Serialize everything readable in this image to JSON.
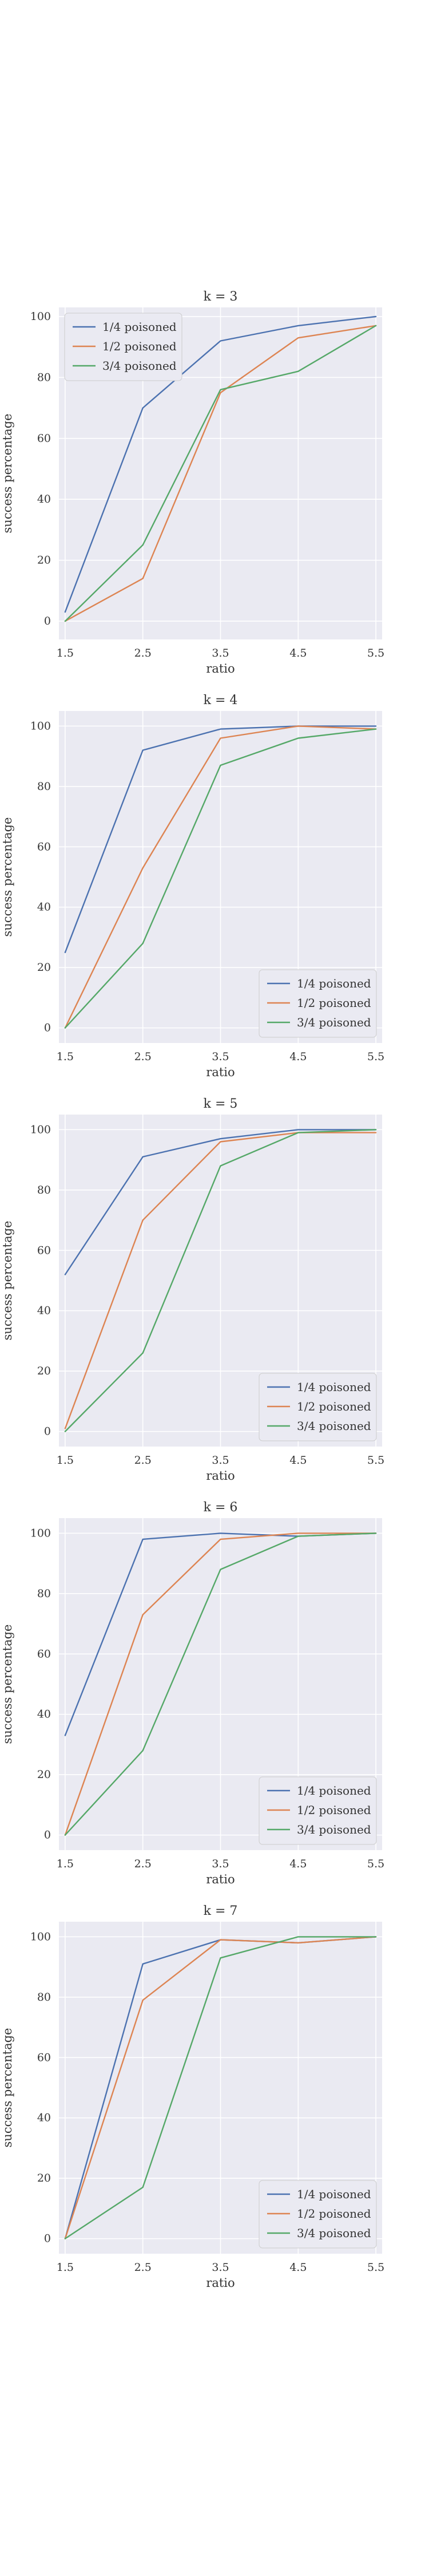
{
  "colors": {
    "series_1": "#4c72b0",
    "series_2": "#dd8452",
    "series_3": "#55a868",
    "plot_background": "#eaeaf2",
    "grid": "#ffffff",
    "text": "#333333"
  },
  "chart_data": [
    {
      "type": "line",
      "title": "k = 3",
      "xlabel": "ratio",
      "ylabel": "success percentage",
      "x": [
        1.5,
        2.5,
        3.5,
        4.5,
        5.5
      ],
      "x_ticks": [
        "1.5",
        "2.5",
        "3.5",
        "4.5",
        "5.5"
      ],
      "y_ticks": [
        "0",
        "20",
        "40",
        "60",
        "80",
        "100"
      ],
      "xlim": [
        1.42,
        5.58
      ],
      "ylim": [
        -6,
        103
      ],
      "grid": true,
      "legend_position": "upper-left",
      "series": [
        {
          "name": "1/4 poisoned",
          "values": [
            3,
            70,
            92,
            97,
            100
          ]
        },
        {
          "name": "1/2 poisoned",
          "values": [
            0,
            14,
            75,
            93,
            97
          ]
        },
        {
          "name": "3/4 poisoned",
          "values": [
            0,
            25,
            76,
            82,
            97
          ]
        }
      ]
    },
    {
      "type": "line",
      "title": "k = 4",
      "xlabel": "ratio",
      "ylabel": "success percentage",
      "x": [
        1.5,
        2.5,
        3.5,
        4.5,
        5.5
      ],
      "x_ticks": [
        "1.5",
        "2.5",
        "3.5",
        "4.5",
        "5.5"
      ],
      "y_ticks": [
        "0",
        "20",
        "40",
        "60",
        "80",
        "100"
      ],
      "xlim": [
        1.42,
        5.58
      ],
      "ylim": [
        -5,
        105
      ],
      "grid": true,
      "legend_position": "lower-right",
      "series": [
        {
          "name": "1/4 poisoned",
          "values": [
            25,
            92,
            99,
            100,
            100
          ]
        },
        {
          "name": "1/2 poisoned",
          "values": [
            0,
            53,
            96,
            100,
            99
          ]
        },
        {
          "name": "3/4 poisoned",
          "values": [
            0,
            28,
            87,
            96,
            99
          ]
        }
      ]
    },
    {
      "type": "line",
      "title": "k = 5",
      "xlabel": "ratio",
      "ylabel": "success percentage",
      "x": [
        1.5,
        2.5,
        3.5,
        4.5,
        5.5
      ],
      "x_ticks": [
        "1.5",
        "2.5",
        "3.5",
        "4.5",
        "5.5"
      ],
      "y_ticks": [
        "0",
        "20",
        "40",
        "60",
        "80",
        "100"
      ],
      "xlim": [
        1.42,
        5.58
      ],
      "ylim": [
        -5,
        105
      ],
      "grid": true,
      "legend_position": "lower-right",
      "series": [
        {
          "name": "1/4 poisoned",
          "values": [
            52,
            91,
            97,
            100,
            100
          ]
        },
        {
          "name": "1/2 poisoned",
          "values": [
            1,
            70,
            96,
            99,
            99
          ]
        },
        {
          "name": "3/4 poisoned",
          "values": [
            0,
            26,
            88,
            99,
            100
          ]
        }
      ]
    },
    {
      "type": "line",
      "title": "k = 6",
      "xlabel": "ratio",
      "ylabel": "success percentage",
      "x": [
        1.5,
        2.5,
        3.5,
        4.5,
        5.5
      ],
      "x_ticks": [
        "1.5",
        "2.5",
        "3.5",
        "4.5",
        "5.5"
      ],
      "y_ticks": [
        "0",
        "20",
        "40",
        "60",
        "80",
        "100"
      ],
      "xlim": [
        1.42,
        5.58
      ],
      "ylim": [
        -5,
        105
      ],
      "grid": true,
      "legend_position": "lower-right",
      "series": [
        {
          "name": "1/4 poisoned",
          "values": [
            33,
            98,
            100,
            99,
            100
          ]
        },
        {
          "name": "1/2 poisoned",
          "values": [
            0,
            73,
            98,
            100,
            100
          ]
        },
        {
          "name": "3/4 poisoned",
          "values": [
            0,
            28,
            88,
            99,
            100
          ]
        }
      ]
    },
    {
      "type": "line",
      "title": "k = 7",
      "xlabel": "ratio",
      "ylabel": "success percentage",
      "x": [
        1.5,
        2.5,
        3.5,
        4.5,
        5.5
      ],
      "x_ticks": [
        "1.5",
        "2.5",
        "3.5",
        "4.5",
        "5.5"
      ],
      "y_ticks": [
        "0",
        "20",
        "40",
        "60",
        "80",
        "100"
      ],
      "xlim": [
        1.42,
        5.58
      ],
      "ylim": [
        -5,
        105
      ],
      "grid": true,
      "legend_position": "lower-right",
      "series": [
        {
          "name": "1/4 poisoned",
          "values": [
            0,
            91,
            99,
            98,
            100
          ]
        },
        {
          "name": "1/2 poisoned",
          "values": [
            0,
            79,
            99,
            98,
            100
          ]
        },
        {
          "name": "3/4 poisoned",
          "values": [
            0,
            17,
            93,
            100,
            100
          ]
        }
      ]
    }
  ]
}
